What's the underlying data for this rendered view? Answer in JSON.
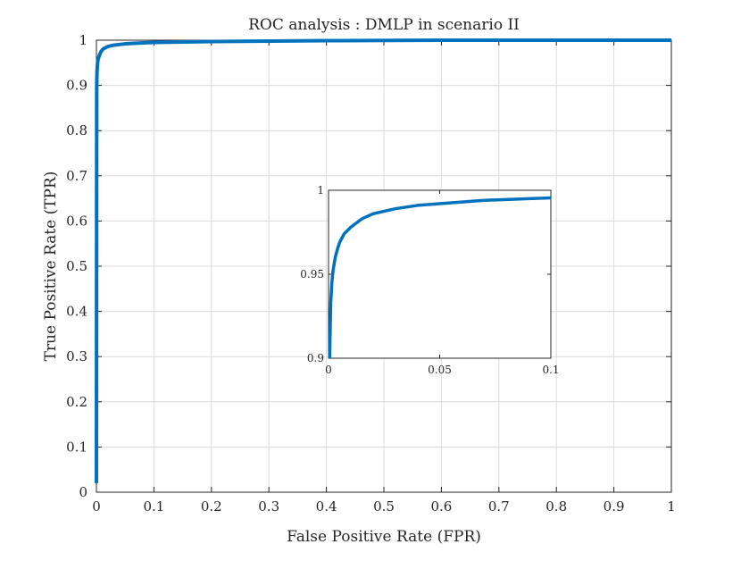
{
  "chart_data": [
    {
      "type": "line",
      "title": "ROC analysis : DMLP in scenario II",
      "xlabel": "False Positive Rate (FPR)",
      "ylabel": "True Positive Rate (TPR)",
      "xlim": [
        0,
        1
      ],
      "ylim": [
        0,
        1
      ],
      "grid": true,
      "xticks": [
        "0",
        "0.1",
        "0.2",
        "0.3",
        "0.4",
        "0.5",
        "0.6",
        "0.7",
        "0.8",
        "0.9",
        "1"
      ],
      "yticks": [
        "0",
        "0.1",
        "0.2",
        "0.3",
        "0.4",
        "0.5",
        "0.6",
        "0.7",
        "0.8",
        "0.9",
        "1"
      ],
      "series": [
        {
          "color": "#0072BD",
          "x": [
            0,
            0.0005,
            0.001,
            0.002,
            0.003,
            0.005,
            0.008,
            0.012,
            0.02,
            0.03,
            0.05,
            0.08,
            0.1,
            0.2,
            0.4,
            0.6,
            0.8,
            1.0
          ],
          "y": [
            0.02,
            0.9,
            0.93,
            0.95,
            0.958,
            0.966,
            0.975,
            0.981,
            0.986,
            0.989,
            0.992,
            0.994,
            0.995,
            0.997,
            0.999,
            1.0,
            1.0,
            1.0
          ]
        }
      ]
    },
    {
      "type": "line",
      "title": "",
      "xlabel": "",
      "ylabel": "",
      "xlim": [
        0,
        0.1
      ],
      "ylim": [
        0.9,
        1
      ],
      "grid": false,
      "xticks": [
        "0",
        "0.05",
        "0.1"
      ],
      "yticks": [
        "0.9",
        "0.95",
        "1"
      ],
      "series": [
        {
          "color": "#0072BD",
          "x": [
            0.0005,
            0.0008,
            0.001,
            0.0015,
            0.002,
            0.003,
            0.004,
            0.005,
            0.007,
            0.01,
            0.015,
            0.02,
            0.03,
            0.04,
            0.05,
            0.06,
            0.07,
            0.08,
            0.09,
            0.1
          ],
          "y": [
            0.9,
            0.92,
            0.933,
            0.945,
            0.952,
            0.96,
            0.965,
            0.969,
            0.974,
            0.978,
            0.983,
            0.986,
            0.989,
            0.991,
            0.992,
            0.993,
            0.994,
            0.9945,
            0.995,
            0.9955
          ]
        }
      ]
    }
  ]
}
